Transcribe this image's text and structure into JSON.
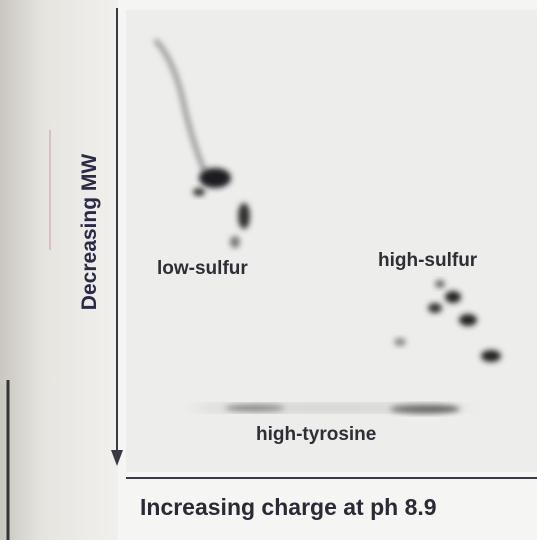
{
  "axes": {
    "y_label": "Decreasing MW",
    "x_label": "Increasing charge at ph 8.9"
  },
  "regions": [
    {
      "label": "low-sulfur"
    },
    {
      "label": "high-sulfur"
    },
    {
      "label": "high-tyrosine"
    }
  ]
}
